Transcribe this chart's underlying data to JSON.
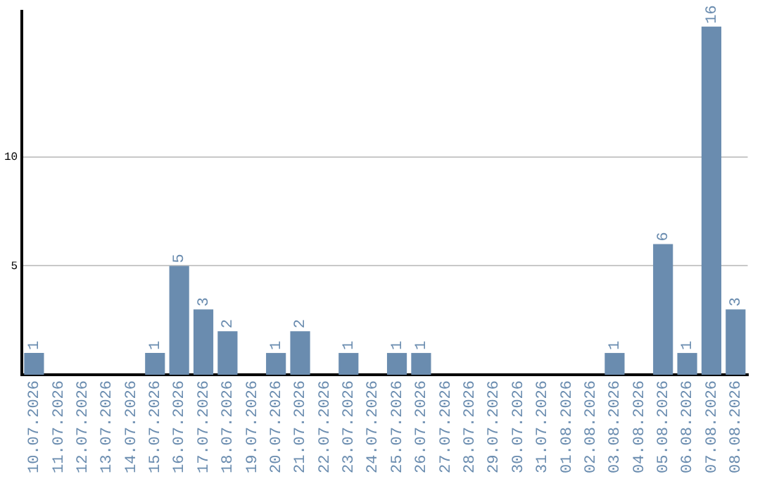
{
  "chart_data": {
    "type": "bar",
    "categories": [
      "10.07.2026",
      "11.07.2026",
      "12.07.2026",
      "13.07.2026",
      "14.07.2026",
      "15.07.2026",
      "16.07.2026",
      "17.07.2026",
      "18.07.2026",
      "19.07.2026",
      "20.07.2026",
      "21.07.2026",
      "22.07.2026",
      "23.07.2026",
      "24.07.2026",
      "25.07.2026",
      "26.07.2026",
      "27.07.2026",
      "28.07.2026",
      "29.07.2026",
      "30.07.2026",
      "31.07.2026",
      "01.08.2026",
      "02.08.2026",
      "03.08.2026",
      "04.08.2026",
      "05.08.2026",
      "06.08.2026",
      "07.08.2026",
      "08.08.2026"
    ],
    "values": [
      1,
      0,
      0,
      0,
      0,
      1,
      5,
      3,
      2,
      0,
      1,
      2,
      0,
      1,
      0,
      1,
      1,
      0,
      0,
      0,
      0,
      0,
      0,
      0,
      1,
      0,
      6,
      1,
      16,
      3
    ],
    "value_labels": [
      "1",
      null,
      null,
      null,
      null,
      "1",
      "5",
      "3",
      "2",
      null,
      "1",
      "2",
      null,
      "1",
      null,
      "1",
      "1",
      null,
      null,
      null,
      null,
      null,
      null,
      null,
      "1",
      null,
      "6",
      "1",
      "16",
      "3"
    ],
    "color": "#6a8caf",
    "ylim": [
      0,
      16.7
    ],
    "yticks": [
      5,
      10
    ],
    "grid": "y",
    "legend": false
  }
}
